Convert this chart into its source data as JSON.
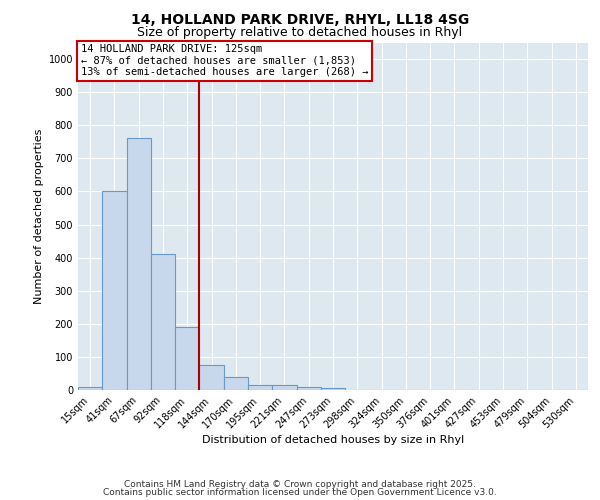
{
  "title1": "14, HOLLAND PARK DRIVE, RHYL, LL18 4SG",
  "title2": "Size of property relative to detached houses in Rhyl",
  "xlabel": "Distribution of detached houses by size in Rhyl",
  "ylabel": "Number of detached properties",
  "bar_labels": [
    "15sqm",
    "41sqm",
    "67sqm",
    "92sqm",
    "118sqm",
    "144sqm",
    "170sqm",
    "195sqm",
    "221sqm",
    "247sqm",
    "273sqm",
    "298sqm",
    "324sqm",
    "350sqm",
    "376sqm",
    "401sqm",
    "427sqm",
    "453sqm",
    "479sqm",
    "504sqm",
    "530sqm"
  ],
  "bar_values": [
    10,
    600,
    760,
    410,
    190,
    75,
    38,
    15,
    15,
    10,
    5,
    0,
    0,
    0,
    0,
    0,
    0,
    0,
    0,
    0,
    0
  ],
  "bar_color": "#c8d8ec",
  "bar_edge_color": "#6699cc",
  "bar_width": 1.0,
  "red_line_x": 4.5,
  "annotation_title": "14 HOLLAND PARK DRIVE: 125sqm",
  "annotation_line1": "← 87% of detached houses are smaller (1,853)",
  "annotation_line2": "13% of semi-detached houses are larger (268) →",
  "annotation_box_color": "#ffffff",
  "annotation_box_edge": "#cc0000",
  "red_line_color": "#aa0000",
  "ylim": [
    0,
    1050
  ],
  "yticks": [
    0,
    100,
    200,
    300,
    400,
    500,
    600,
    700,
    800,
    900,
    1000
  ],
  "background_color": "#dde8f0",
  "footer1": "Contains HM Land Registry data © Crown copyright and database right 2025.",
  "footer2": "Contains public sector information licensed under the Open Government Licence v3.0.",
  "title_fontsize": 10,
  "subtitle_fontsize": 9,
  "axis_fontsize": 8,
  "tick_fontsize": 7,
  "annotation_fontsize": 7.5,
  "footer_fontsize": 6.5
}
